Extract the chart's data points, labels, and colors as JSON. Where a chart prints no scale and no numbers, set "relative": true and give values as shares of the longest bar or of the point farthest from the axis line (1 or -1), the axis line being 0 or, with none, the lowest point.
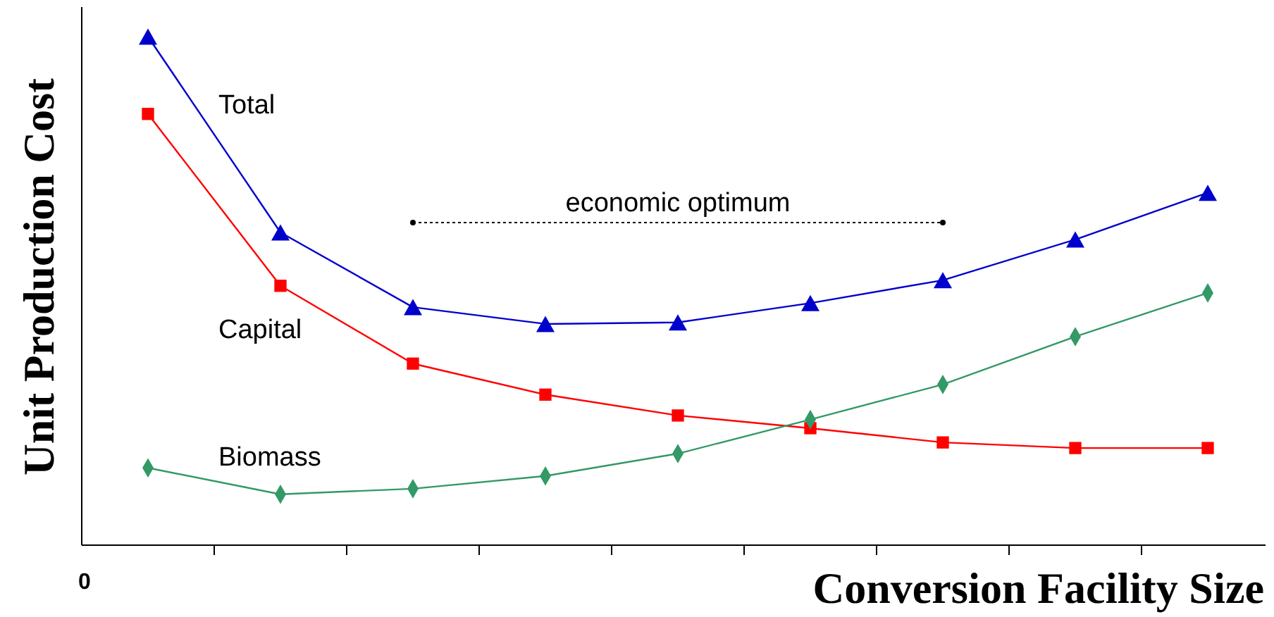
{
  "chart_data": {
    "type": "line",
    "relative": true,
    "xlabel": "Conversion Facility Size",
    "ylabel": "Unit Production Cost",
    "categories": [
      null,
      null,
      null,
      null,
      null,
      null,
      null,
      null,
      null
    ],
    "annotations": [
      "economic optimum",
      "0"
    ],
    "grid": false,
    "series": [
      {
        "name": "Total",
        "color": "#0000cc",
        "marker": "triangle",
        "values": [
          1,
          0.615,
          0.468,
          0.435,
          0.438,
          0.476,
          0.521,
          0.601,
          0.693
        ]
      },
      {
        "name": "Capital",
        "color": "#ff0000",
        "marker": "square",
        "values": [
          0.848,
          0.51,
          0.357,
          0.296,
          0.255,
          0.23,
          0.202,
          0.191,
          0.191
        ]
      },
      {
        "name": "Biomass",
        "color": "#339966",
        "marker": "diamond",
        "values": [
          0.152,
          0.1,
          0.111,
          0.136,
          0.18,
          0.247,
          0.316,
          0.41,
          0.496
        ]
      }
    ]
  }
}
